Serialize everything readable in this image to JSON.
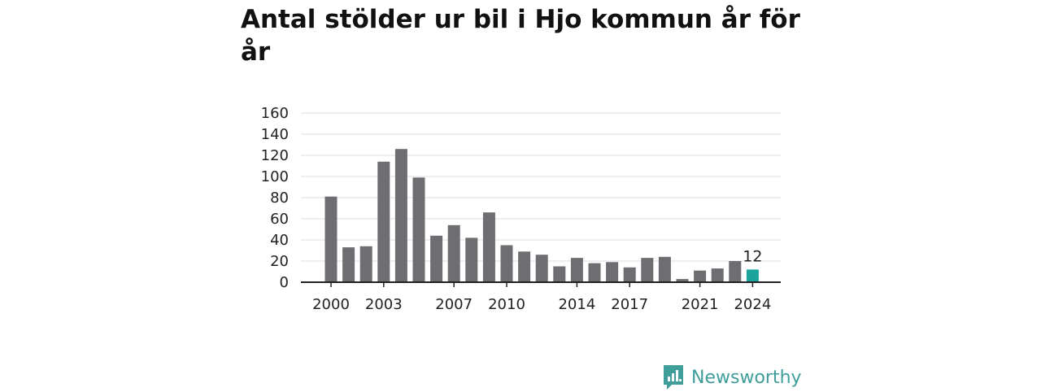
{
  "title": "Antal stölder ur bil i Hjo kommun år för år",
  "brand": {
    "name": "Newsworthy",
    "color": "#3f9e9a",
    "icon": "newsworthy-logo-icon"
  },
  "chart_data": {
    "type": "bar",
    "title": "Antal stölder ur bil i Hjo kommun år för år",
    "xlabel": "",
    "ylabel": "",
    "ylim": [
      0,
      160
    ],
    "yticks": [
      0,
      20,
      40,
      60,
      80,
      100,
      120,
      140,
      160
    ],
    "x_tick_labels": [
      "2000",
      "2003",
      "2007",
      "2010",
      "2014",
      "2017",
      "2021",
      "2024"
    ],
    "grid": true,
    "categories": [
      "2000",
      "2001",
      "2002",
      "2003",
      "2004",
      "2005",
      "2006",
      "2007",
      "2008",
      "2009",
      "2010",
      "2011",
      "2012",
      "2013",
      "2014",
      "2015",
      "2016",
      "2017",
      "2018",
      "2019",
      "2020",
      "2021",
      "2022",
      "2023",
      "2024"
    ],
    "values": [
      81,
      33,
      34,
      114,
      126,
      99,
      44,
      54,
      42,
      66,
      35,
      29,
      26,
      15,
      23,
      18,
      19,
      14,
      23,
      24,
      3,
      11,
      13,
      20,
      12
    ],
    "bar_color": "#6d6d72",
    "highlight_color": "#1aa39a",
    "highlight_category": "2024",
    "highlight_label": "12"
  }
}
